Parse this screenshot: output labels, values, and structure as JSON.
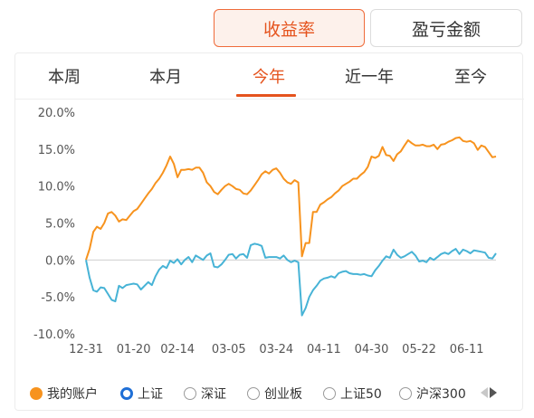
{
  "segments": {
    "active": "收益率",
    "inactive": "盈亏金额"
  },
  "tabs": [
    {
      "label": "本周",
      "active": false
    },
    {
      "label": "本月",
      "active": false
    },
    {
      "label": "今年",
      "active": true
    },
    {
      "label": "近一年",
      "active": false
    },
    {
      "label": "至今",
      "active": false
    }
  ],
  "legend": {
    "items": [
      {
        "label": "我的账户",
        "state": "filled"
      },
      {
        "label": "上证",
        "state": "selected"
      },
      {
        "label": "深证",
        "state": "unselected"
      },
      {
        "label": "创业板",
        "state": "unselected"
      },
      {
        "label": "上证50",
        "state": "unselected"
      },
      {
        "label": "沪深300",
        "state": "unselected"
      }
    ],
    "prev_icon": "triangle-left-icon",
    "next_icon": "triangle-right-icon"
  },
  "colors": {
    "accent": "#e5531d",
    "account_line": "#f7931e",
    "index_line": "#47b3d6",
    "zero_line": "#cfcfcf"
  },
  "chart_data": {
    "type": "line",
    "ylim": [
      -10,
      20
    ],
    "yticks": [
      "-10.0%",
      "-5.0%",
      "0.0%",
      "5.0%",
      "10.0%",
      "15.0%",
      "20.0%"
    ],
    "xticks": [
      {
        "label": "12-31",
        "i": 0
      },
      {
        "label": "01-20",
        "i": 13
      },
      {
        "label": "02-14",
        "i": 25
      },
      {
        "label": "03-05",
        "i": 39
      },
      {
        "label": "03-24",
        "i": 52
      },
      {
        "label": "04-11",
        "i": 65
      },
      {
        "label": "04-30",
        "i": 78
      },
      {
        "label": "05-22",
        "i": 91
      },
      {
        "label": "06-11",
        "i": 104
      }
    ],
    "series": [
      {
        "name": "我的账户",
        "values": [
          0.0,
          1.5,
          3.8,
          4.5,
          4.2,
          5.0,
          6.3,
          6.5,
          6.0,
          5.2,
          5.5,
          5.4,
          6.0,
          6.6,
          6.9,
          7.6,
          8.3,
          9.0,
          9.6,
          10.4,
          11.0,
          11.8,
          12.8,
          14.0,
          13.0,
          11.2,
          12.2,
          12.2,
          12.3,
          12.2,
          12.5,
          12.5,
          11.8,
          10.5,
          10.0,
          9.2,
          8.9,
          9.5,
          10.0,
          10.3,
          10.0,
          9.6,
          9.5,
          9.0,
          8.9,
          9.4,
          10.1,
          10.8,
          11.6,
          12.0,
          11.7,
          12.2,
          12.4,
          11.8,
          11.0,
          10.5,
          10.3,
          10.8,
          10.5,
          0.5,
          2.3,
          2.3,
          6.5,
          6.5,
          7.5,
          7.8,
          8.2,
          8.5,
          9.0,
          9.4,
          10.0,
          10.3,
          10.6,
          11.0,
          11.0,
          11.5,
          11.9,
          12.6,
          14.0,
          13.8,
          14.1,
          15.3,
          14.2,
          14.1,
          13.4,
          14.3,
          14.7,
          15.5,
          16.2,
          15.8,
          15.5,
          15.5,
          15.6,
          15.4,
          15.4,
          15.6,
          15.0,
          15.6,
          15.7,
          16.0,
          16.2,
          16.5,
          16.6,
          16.1,
          16.0,
          16.1,
          15.8,
          14.9,
          15.5,
          15.3,
          14.6,
          13.9,
          14.0
        ],
        "color": "#f7931e"
      },
      {
        "name": "上证",
        "values": [
          0.0,
          -2.4,
          -4.1,
          -4.3,
          -3.7,
          -3.8,
          -4.6,
          -5.4,
          -5.6,
          -3.5,
          -3.8,
          -3.4,
          -3.3,
          -3.2,
          -3.3,
          -4.0,
          -3.5,
          -3.0,
          -3.4,
          -2.2,
          -1.3,
          -0.8,
          -1.1,
          -0.1,
          -0.4,
          0.1,
          -0.6,
          0.0,
          0.4,
          -0.3,
          0.6,
          0.3,
          0.0,
          0.6,
          0.9,
          -0.9,
          -1.0,
          -0.6,
          0.0,
          0.7,
          0.8,
          0.2,
          0.7,
          0.8,
          0.3,
          2.0,
          2.2,
          2.1,
          1.9,
          0.3,
          0.4,
          0.4,
          0.4,
          0.2,
          0.6,
          0.0,
          -0.3,
          -0.1,
          -0.3,
          -7.5,
          -6.5,
          -5.0,
          -4.1,
          -3.5,
          -2.8,
          -2.5,
          -2.4,
          -2.2,
          -2.4,
          -1.8,
          -1.6,
          -1.5,
          -1.8,
          -1.9,
          -1.9,
          -2.0,
          -1.9,
          -2.1,
          -2.2,
          -1.4,
          -0.8,
          -0.1,
          0.5,
          0.3,
          1.4,
          0.7,
          0.3,
          0.5,
          0.8,
          1.1,
          0.6,
          -0.2,
          -0.1,
          -0.3,
          0.3,
          0.0,
          0.4,
          0.8,
          1.0,
          0.8,
          1.2,
          1.5,
          0.8,
          1.4,
          1.2,
          0.9,
          1.3,
          1.2,
          1.1,
          1.0,
          0.3,
          0.2,
          0.9
        ],
        "color": "#47b3d6"
      }
    ]
  }
}
